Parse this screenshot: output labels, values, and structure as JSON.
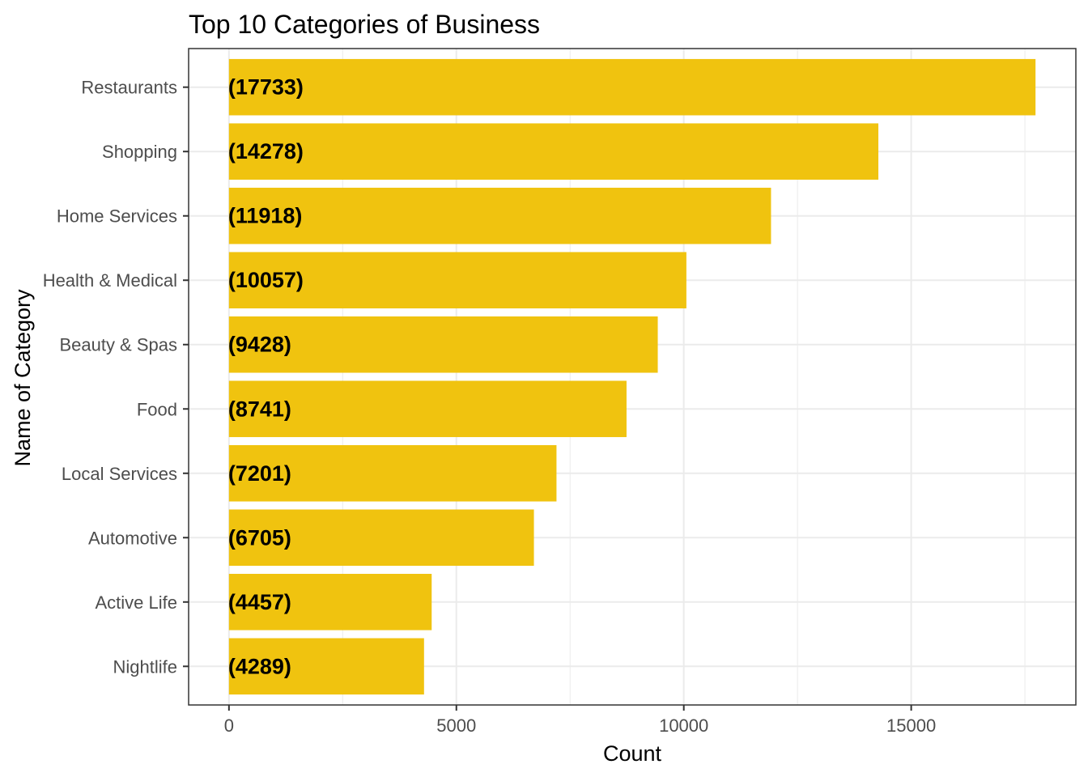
{
  "chart_data": {
    "type": "bar",
    "orientation": "horizontal",
    "title": "Top 10 Categories of Business",
    "xlabel": "Count",
    "ylabel": "Name of Category",
    "categories": [
      "Restaurants",
      "Shopping",
      "Home Services",
      "Health & Medical",
      "Beauty & Spas",
      "Food",
      "Local Services",
      "Automotive",
      "Active Life",
      "Nightlife"
    ],
    "values": [
      17733,
      14278,
      11918,
      10057,
      9428,
      8741,
      7201,
      6705,
      4457,
      4289
    ],
    "data_labels": [
      "(17733)",
      "(14278)",
      "(11918)",
      "(10057)",
      "(9428)",
      "(8741)",
      "(7201)",
      "(6705)",
      "(4457)",
      "(4289)"
    ],
    "x_ticks": [
      0,
      5000,
      10000,
      15000
    ],
    "x_tick_labels": [
      "0",
      "5000",
      "10000",
      "15000"
    ],
    "xlim": [
      -887,
      18620
    ],
    "grid": true,
    "bar_color": "#F0C30F",
    "legend": "none"
  }
}
